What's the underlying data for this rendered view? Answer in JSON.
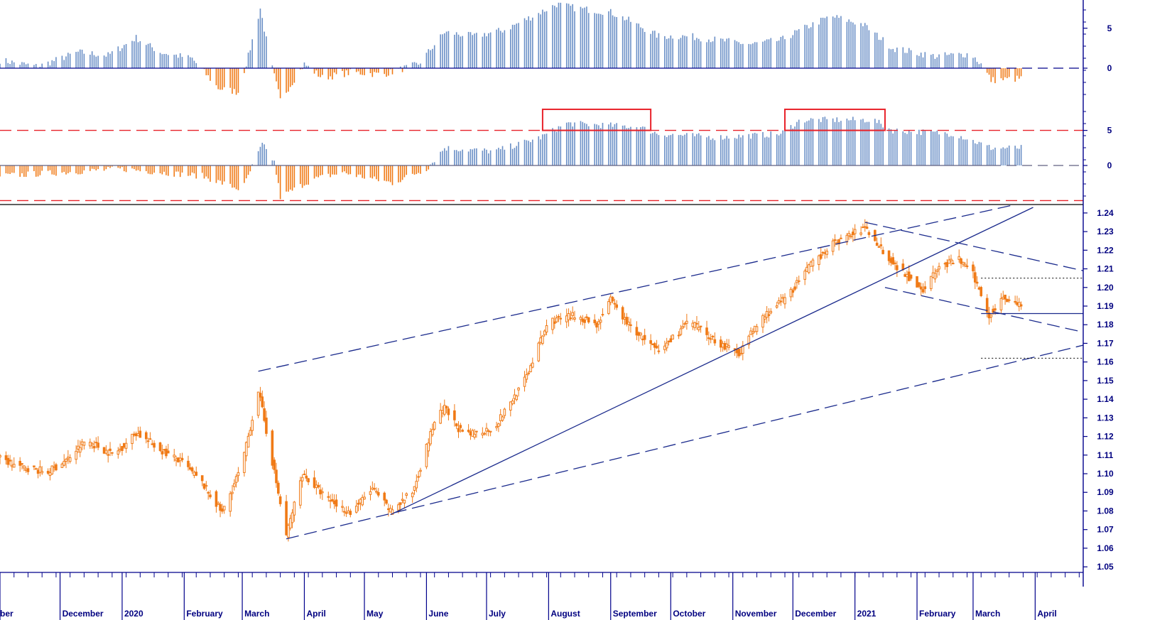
{
  "chart_data": [
    {
      "type": "bar",
      "panel": "upper-histogram",
      "y_ticks": [
        "5",
        "0"
      ],
      "y_tick_values": [
        5,
        0
      ],
      "ylim": [
        -4.5,
        8
      ],
      "colors": {
        "positive": "#6a8fc6",
        "negative": "#f07a16",
        "zero_line": "#00008b"
      },
      "anchors": [
        [
          "2019-11-01",
          1.0
        ],
        [
          "2019-11-20",
          0.2
        ],
        [
          "2019-12-10",
          2.0
        ],
        [
          "2019-12-25",
          1.6
        ],
        [
          "2020-01-08",
          3.8
        ],
        [
          "2020-01-20",
          2.0
        ],
        [
          "2020-02-05",
          1.2
        ],
        [
          "2020-02-18",
          -2.5
        ],
        [
          "2020-02-28",
          -3.0
        ],
        [
          "2020-03-04",
          1.5
        ],
        [
          "2020-03-10",
          7.5
        ],
        [
          "2020-03-15",
          1.0
        ],
        [
          "2020-03-20",
          -4.0
        ],
        [
          "2020-04-01",
          0.5
        ],
        [
          "2020-04-10",
          -1.2
        ],
        [
          "2020-04-25",
          -0.5
        ],
        [
          "2020-05-10",
          -0.8
        ],
        [
          "2020-05-28",
          0.5
        ],
        [
          "2020-06-10",
          4.5
        ],
        [
          "2020-06-25",
          4.0
        ],
        [
          "2020-07-10",
          4.8
        ],
        [
          "2020-07-28",
          7.0
        ],
        [
          "2020-08-05",
          8.0
        ],
        [
          "2020-08-15",
          7.5
        ],
        [
          "2020-09-01",
          7.0
        ],
        [
          "2020-09-10",
          6.0
        ],
        [
          "2020-09-25",
          4.0
        ],
        [
          "2020-10-10",
          4.0
        ],
        [
          "2020-10-25",
          3.5
        ],
        [
          "2020-11-10",
          3.0
        ],
        [
          "2020-11-25",
          3.5
        ],
        [
          "2020-12-05",
          4.8
        ],
        [
          "2020-12-20",
          6.5
        ],
        [
          "2021-01-05",
          5.5
        ],
        [
          "2021-01-20",
          2.5
        ],
        [
          "2021-02-10",
          1.5
        ],
        [
          "2021-02-28",
          1.8
        ],
        [
          "2021-03-05",
          0.5
        ],
        [
          "2021-03-10",
          -1.5
        ],
        [
          "2021-03-25",
          -1.3
        ]
      ]
    },
    {
      "type": "bar",
      "panel": "lower-histogram",
      "y_ticks": [
        "5",
        "0"
      ],
      "y_tick_values": [
        5,
        0
      ],
      "ylim": [
        -5.5,
        8.5
      ],
      "threshold_lines": [
        5,
        -5
      ],
      "highlight_boxes": [
        [
          "2020-07-29",
          "2020-09-21"
        ],
        [
          "2020-11-27",
          "2021-01-16"
        ]
      ],
      "colors": {
        "positive": "#6a8fc6",
        "negative": "#f07a16",
        "threshold": "#e8222a",
        "zero_line": "#606080",
        "box": "#e8222a"
      },
      "anchors": [
        [
          "2019-11-01",
          -1.5
        ],
        [
          "2020-01-01",
          -0.5
        ],
        [
          "2020-02-10",
          -1.5
        ],
        [
          "2020-03-01",
          -3.5
        ],
        [
          "2020-03-07",
          0.5
        ],
        [
          "2020-03-11",
          3.0
        ],
        [
          "2020-03-17",
          0.5
        ],
        [
          "2020-03-20",
          -4.5
        ],
        [
          "2020-04-05",
          -2.0
        ],
        [
          "2020-04-20",
          -1.0
        ],
        [
          "2020-05-15",
          -2.5
        ],
        [
          "2020-06-01",
          -0.5
        ],
        [
          "2020-06-10",
          2.5
        ],
        [
          "2020-07-05",
          2.0
        ],
        [
          "2020-07-28",
          4.0
        ],
        [
          "2020-08-10",
          6.0
        ],
        [
          "2020-09-15",
          5.5
        ],
        [
          "2020-09-25",
          4.5
        ],
        [
          "2020-10-25",
          4.0
        ],
        [
          "2020-11-25",
          4.5
        ],
        [
          "2020-12-05",
          6.5
        ],
        [
          "2021-01-10",
          6.5
        ],
        [
          "2021-01-20",
          5.0
        ],
        [
          "2021-02-20",
          4.5
        ],
        [
          "2021-03-10",
          2.5
        ],
        [
          "2021-03-25",
          2.5
        ]
      ]
    },
    {
      "type": "candlestick",
      "panel": "price",
      "y_ticks": [
        "1.24",
        "1.23",
        "1.22",
        "1.21",
        "1.20",
        "1.19",
        "1.18",
        "1.17",
        "1.16",
        "1.15",
        "1.14",
        "1.13",
        "1.12",
        "1.11",
        "1.10",
        "1.09",
        "1.08",
        "1.07",
        "1.06",
        "1.05"
      ],
      "y_tick_values": [
        1.24,
        1.23,
        1.22,
        1.21,
        1.2,
        1.19,
        1.18,
        1.17,
        1.16,
        1.15,
        1.14,
        1.13,
        1.12,
        1.11,
        1.1,
        1.09,
        1.08,
        1.07,
        1.06,
        1.05
      ],
      "ylim": [
        1.047,
        1.243
      ],
      "xlim": [
        "2019-11-01",
        "2021-04-25"
      ],
      "colors": {
        "candle": "#f07a16",
        "trendline": "#1a2a8c"
      },
      "anchors": [
        [
          "2019-11-01",
          1.108
        ],
        [
          "2019-11-10",
          1.104
        ],
        [
          "2019-11-25",
          1.101
        ],
        [
          "2019-12-05",
          1.108
        ],
        [
          "2019-12-14",
          1.118
        ],
        [
          "2019-12-28",
          1.11
        ],
        [
          "2020-01-08",
          1.122
        ],
        [
          "2020-01-20",
          1.113
        ],
        [
          "2020-01-31",
          1.106
        ],
        [
          "2020-02-10",
          1.095
        ],
        [
          "2020-02-20",
          1.079
        ],
        [
          "2020-03-01",
          1.105
        ],
        [
          "2020-03-09",
          1.145
        ],
        [
          "2020-03-15",
          1.112
        ],
        [
          "2020-03-23",
          1.067
        ],
        [
          "2020-03-31",
          1.1
        ],
        [
          "2020-04-12",
          1.087
        ],
        [
          "2020-04-24",
          1.079
        ],
        [
          "2020-05-05",
          1.092
        ],
        [
          "2020-05-14",
          1.08
        ],
        [
          "2020-05-25",
          1.09
        ],
        [
          "2020-06-05",
          1.128
        ],
        [
          "2020-06-10",
          1.135
        ],
        [
          "2020-06-20",
          1.12
        ],
        [
          "2020-07-05",
          1.125
        ],
        [
          "2020-07-20",
          1.15
        ],
        [
          "2020-08-01",
          1.182
        ],
        [
          "2020-08-15",
          1.185
        ],
        [
          "2020-08-25",
          1.18
        ],
        [
          "2020-09-01",
          1.193
        ],
        [
          "2020-09-10",
          1.18
        ],
        [
          "2020-09-25",
          1.165
        ],
        [
          "2020-10-10",
          1.182
        ],
        [
          "2020-10-25",
          1.17
        ],
        [
          "2020-11-04",
          1.165
        ],
        [
          "2020-11-15",
          1.183
        ],
        [
          "2020-11-28",
          1.195
        ],
        [
          "2020-12-10",
          1.212
        ],
        [
          "2020-12-20",
          1.223
        ],
        [
          "2021-01-06",
          1.232
        ],
        [
          "2021-01-20",
          1.213
        ],
        [
          "2021-02-04",
          1.199
        ],
        [
          "2021-02-12",
          1.211
        ],
        [
          "2021-02-22",
          1.215
        ],
        [
          "2021-03-01",
          1.207
        ],
        [
          "2021-03-09",
          1.185
        ],
        [
          "2021-03-16",
          1.195
        ],
        [
          "2021-03-25",
          1.19
        ]
      ],
      "trendlines": [
        {
          "style": "dashed",
          "from": [
            "2020-03-09",
            1.155
          ],
          "to": [
            "2021-03-20",
            1.244
          ]
        },
        {
          "style": "dashed",
          "from": [
            "2020-03-23",
            1.065
          ],
          "to": [
            "2021-04-25",
            1.169
          ]
        },
        {
          "style": "solid",
          "from": [
            "2020-05-14",
            1.078
          ],
          "to": [
            "2021-03-31",
            1.243
          ]
        },
        {
          "style": "dashed",
          "from": [
            "2021-01-06",
            1.235
          ],
          "to": [
            "2021-04-25",
            1.209
          ]
        },
        {
          "style": "dashed",
          "from": [
            "2021-01-16",
            1.2
          ],
          "to": [
            "2021-04-25",
            1.176
          ]
        },
        {
          "style": "solid",
          "from": [
            "2021-03-05",
            1.186
          ],
          "to": [
            "2021-04-25",
            1.186
          ]
        },
        {
          "style": "dotted",
          "from": [
            "2021-03-05",
            1.205
          ],
          "to": [
            "2021-04-25",
            1.205
          ]
        },
        {
          "style": "dotted",
          "from": [
            "2021-03-05",
            1.162
          ],
          "to": [
            "2021-04-25",
            1.162
          ]
        }
      ]
    }
  ],
  "x_axis": {
    "months": [
      {
        "date": "2019-11-01",
        "label": "ber"
      },
      {
        "date": "2019-12-01",
        "label": "December"
      },
      {
        "date": "2020-01-01",
        "label": "2020"
      },
      {
        "date": "2020-02-01",
        "label": "February"
      },
      {
        "date": "2020-03-01",
        "label": "March"
      },
      {
        "date": "2020-04-01",
        "label": "April"
      },
      {
        "date": "2020-05-01",
        "label": "May"
      },
      {
        "date": "2020-06-01",
        "label": "June"
      },
      {
        "date": "2020-07-01",
        "label": "July"
      },
      {
        "date": "2020-08-01",
        "label": "August"
      },
      {
        "date": "2020-09-01",
        "label": "September"
      },
      {
        "date": "2020-10-01",
        "label": "October"
      },
      {
        "date": "2020-11-01",
        "label": "November"
      },
      {
        "date": "2020-12-01",
        "label": "December"
      },
      {
        "date": "2021-01-01",
        "label": "2021"
      },
      {
        "date": "2021-02-01",
        "label": "February"
      },
      {
        "date": "2021-03-01",
        "label": "March"
      },
      {
        "date": "2021-04-01",
        "label": "April"
      }
    ]
  },
  "colors": {
    "axis": "#00008b",
    "label": "#000080"
  }
}
